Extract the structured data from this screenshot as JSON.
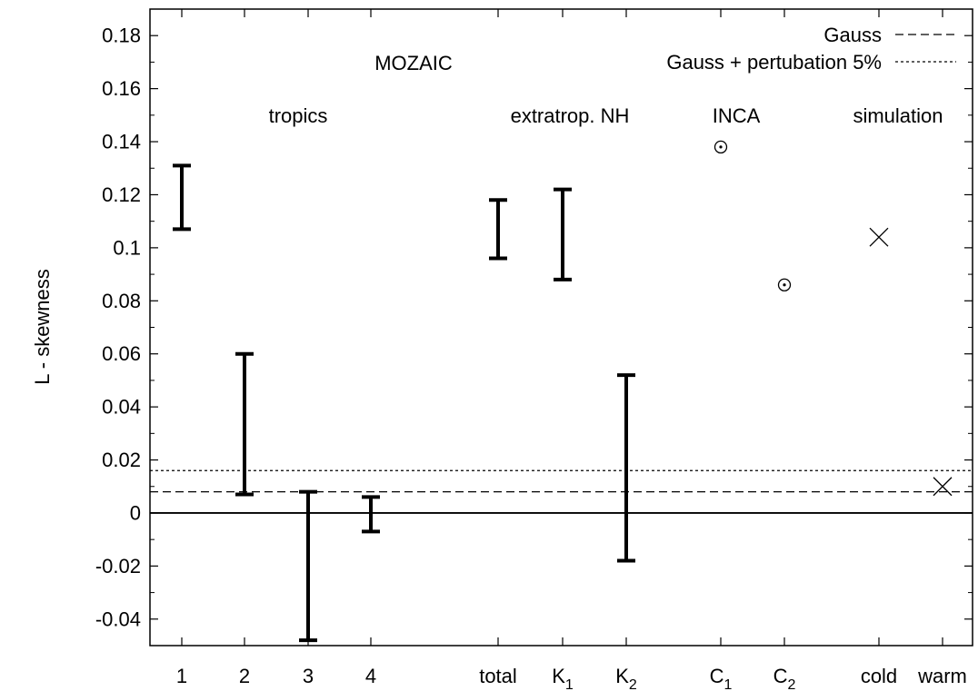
{
  "chart_data": {
    "type": "scatter",
    "title": "",
    "xlabel": "",
    "ylabel": "L - skewness",
    "ylim": [
      -0.05,
      0.19
    ],
    "grid": false,
    "legend_position": "top-right",
    "x_ticks": [
      {
        "label": "1",
        "sub": ""
      },
      {
        "label": "2",
        "sub": ""
      },
      {
        "label": "3",
        "sub": ""
      },
      {
        "label": "4",
        "sub": ""
      },
      {
        "label": "total",
        "sub": ""
      },
      {
        "label": "K",
        "sub": "1"
      },
      {
        "label": "K",
        "sub": "2"
      },
      {
        "label": "C",
        "sub": "1"
      },
      {
        "label": "C",
        "sub": "2"
      },
      {
        "label": "cold",
        "sub": ""
      },
      {
        "label": "warm",
        "sub": ""
      }
    ],
    "y_ticks": [
      "-0.04",
      "-0.02",
      "0",
      "0.02",
      "0.04",
      "0.06",
      "0.08",
      "0.1",
      "0.12",
      "0.14",
      "0.16",
      "0.18"
    ],
    "series": [
      {
        "name": "",
        "style": "errorbar",
        "points": [
          {
            "category": "1",
            "low": 0.107,
            "high": 0.131
          },
          {
            "category": "2",
            "low": 0.007,
            "high": 0.06
          },
          {
            "category": "3",
            "low": -0.048,
            "high": 0.008
          },
          {
            "category": "4",
            "low": -0.007,
            "high": 0.006
          },
          {
            "category": "total",
            "low": 0.096,
            "high": 0.118
          },
          {
            "category": "K1",
            "low": 0.088,
            "high": 0.122
          },
          {
            "category": "K2",
            "low": -0.018,
            "high": 0.052
          }
        ]
      },
      {
        "name": "",
        "style": "circle-dot",
        "points": [
          {
            "category": "C1",
            "y": 0.138
          },
          {
            "category": "C2",
            "y": 0.086
          }
        ]
      },
      {
        "name": "",
        "style": "cross",
        "points": [
          {
            "category": "cold",
            "y": 0.104
          },
          {
            "category": "warm",
            "y": 0.01
          }
        ]
      }
    ],
    "reference_lines": [
      {
        "name": "Gauss",
        "y": 0.008,
        "dash": "dashed"
      },
      {
        "name": "Gauss + pertubation 5%",
        "y": 0.016,
        "dash": "dotted"
      },
      {
        "name": "",
        "y": 0.0,
        "dash": "solid"
      }
    ],
    "annotations": [
      "MOZAIC",
      "tropics",
      "extratrop. NH",
      "INCA",
      "simulation"
    ]
  }
}
